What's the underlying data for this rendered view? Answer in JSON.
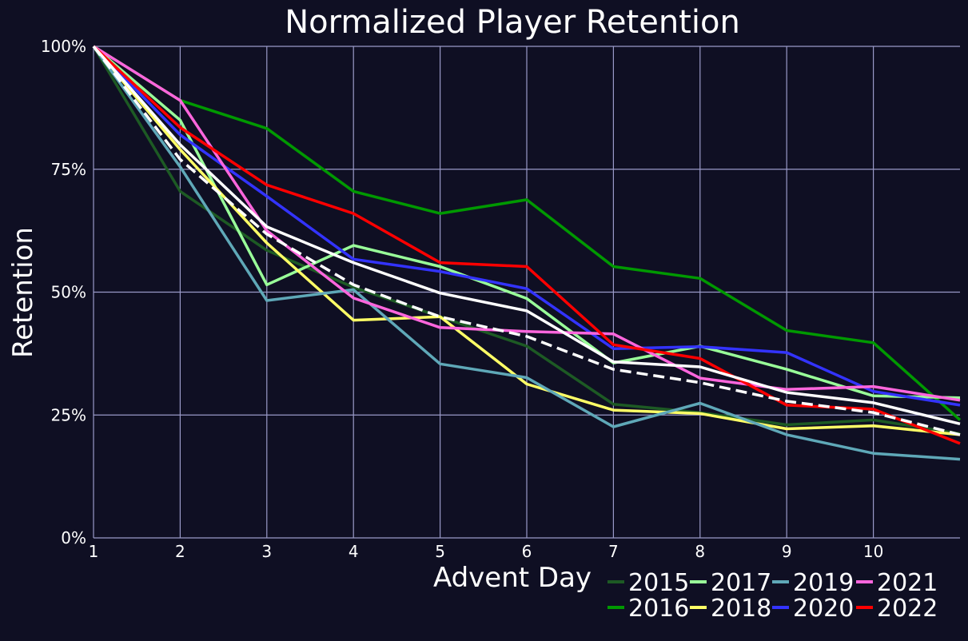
{
  "chart_data": {
    "type": "line",
    "title": "Normalized Player Retention",
    "xlabel": "Advent Day",
    "ylabel": "Retention",
    "x": [
      1,
      2,
      3,
      4,
      5,
      6,
      7,
      8,
      9,
      10,
      11
    ],
    "x_tick_labels": [
      "1",
      "2",
      "3",
      "4",
      "5",
      "6",
      "7",
      "8",
      "9",
      "10"
    ],
    "y_tick_labels": [
      "0%",
      "25%",
      "50%",
      "75%",
      "100%"
    ],
    "y_ticks": [
      0,
      0.25,
      0.5,
      0.75,
      1.0
    ],
    "xlim": [
      1,
      11
    ],
    "ylim": [
      0,
      1
    ],
    "grid": true,
    "legend_position": "bottom-right",
    "background": "#0f0f23",
    "grid_color": "#9a9ac8",
    "series": [
      {
        "name": "2015",
        "color": "#1d5a24",
        "dash": false,
        "values": [
          1.0,
          0.705,
          0.585,
          0.51,
          0.45,
          0.39,
          0.272,
          0.255,
          0.23,
          0.24,
          0.212
        ]
      },
      {
        "name": "2016",
        "color": "#009900",
        "dash": false,
        "values": [
          1.0,
          0.89,
          0.833,
          0.705,
          0.66,
          0.688,
          0.552,
          0.528,
          0.422,
          0.397,
          0.24
        ]
      },
      {
        "name": "2017",
        "color": "#99ff99",
        "dash": false,
        "values": [
          1.0,
          0.85,
          0.515,
          0.595,
          0.552,
          0.487,
          0.356,
          0.39,
          0.343,
          0.289,
          0.285
        ]
      },
      {
        "name": "2018",
        "color": "#ffff66",
        "dash": false,
        "values": [
          1.0,
          0.79,
          0.6,
          0.443,
          0.45,
          0.313,
          0.26,
          0.253,
          0.222,
          0.228,
          0.21
        ]
      },
      {
        "name": "2019",
        "color": "#5fa8b8",
        "dash": false,
        "values": [
          1.0,
          0.755,
          0.483,
          0.505,
          0.354,
          0.326,
          0.226,
          0.274,
          0.21,
          0.172,
          0.16
        ]
      },
      {
        "name": "2020",
        "color": "#3333ff",
        "dash": false,
        "values": [
          1.0,
          0.82,
          0.695,
          0.567,
          0.542,
          0.507,
          0.385,
          0.389,
          0.377,
          0.298,
          0.27
        ]
      },
      {
        "name": "2021",
        "color": "#ff66dd",
        "dash": false,
        "values": [
          1.0,
          0.89,
          0.625,
          0.488,
          0.428,
          0.42,
          0.415,
          0.325,
          0.302,
          0.308,
          0.28
        ]
      },
      {
        "name": "2022",
        "color": "#ff0000",
        "dash": false,
        "values": [
          1.0,
          0.835,
          0.718,
          0.66,
          0.56,
          0.552,
          0.393,
          0.365,
          0.27,
          0.262,
          0.192
        ]
      },
      {
        "name": "",
        "color": "#ffffff",
        "dash": false,
        "values": [
          1.0,
          0.8,
          0.633,
          0.56,
          0.498,
          0.462,
          0.358,
          0.348,
          0.296,
          0.275,
          0.232
        ]
      },
      {
        "name": "",
        "color": "#ffffff",
        "dash": true,
        "values": [
          1.0,
          0.77,
          0.618,
          0.515,
          0.45,
          0.41,
          0.343,
          0.316,
          0.278,
          0.255,
          0.21
        ]
      }
    ]
  }
}
